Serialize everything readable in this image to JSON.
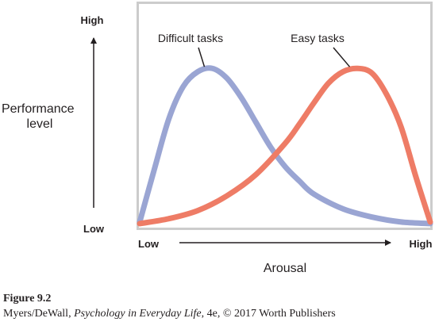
{
  "chart_data": {
    "type": "line",
    "title": "",
    "xlabel": "Arousal",
    "ylabel": "Performance level",
    "x_tick_labels": [
      "Low",
      "High"
    ],
    "y_tick_labels": [
      "Low",
      "High"
    ],
    "xlim": [
      0,
      1
    ],
    "ylim": [
      0,
      1
    ],
    "grid": false,
    "legend": "none",
    "series": [
      {
        "name": "Difficult tasks",
        "color": "#9aa5d3",
        "x": [
          0.0,
          0.05,
          0.1,
          0.15,
          0.2,
          0.25,
          0.3,
          0.35,
          0.4,
          0.45,
          0.5,
          0.55,
          0.6,
          0.7,
          0.8,
          0.9,
          1.0
        ],
        "y": [
          0.02,
          0.34,
          0.65,
          0.85,
          0.94,
          0.96,
          0.9,
          0.78,
          0.63,
          0.48,
          0.36,
          0.27,
          0.19,
          0.1,
          0.05,
          0.02,
          0.01
        ]
      },
      {
        "name": "Easy tasks",
        "color": "#ee7c66",
        "x": [
          0.0,
          0.1,
          0.2,
          0.3,
          0.4,
          0.5,
          0.55,
          0.6,
          0.65,
          0.7,
          0.75,
          0.8,
          0.85,
          0.9,
          0.95,
          1.0
        ],
        "y": [
          0.01,
          0.04,
          0.09,
          0.18,
          0.31,
          0.5,
          0.62,
          0.75,
          0.87,
          0.94,
          0.96,
          0.93,
          0.8,
          0.6,
          0.3,
          0.02
        ]
      }
    ],
    "annotations": [
      {
        "text": "Difficult tasks",
        "series": 0,
        "x": 0.25,
        "y": 0.96
      },
      {
        "text": "Easy tasks",
        "series": 1,
        "x": 0.75,
        "y": 0.96
      }
    ]
  },
  "caption": {
    "figure_label": "Figure 9.2",
    "authors": "Myers/DeWall, ",
    "book_title": "Psychology in Everyday Life",
    "edition_credit": ", 4e, © 2017 Worth Publishers"
  }
}
